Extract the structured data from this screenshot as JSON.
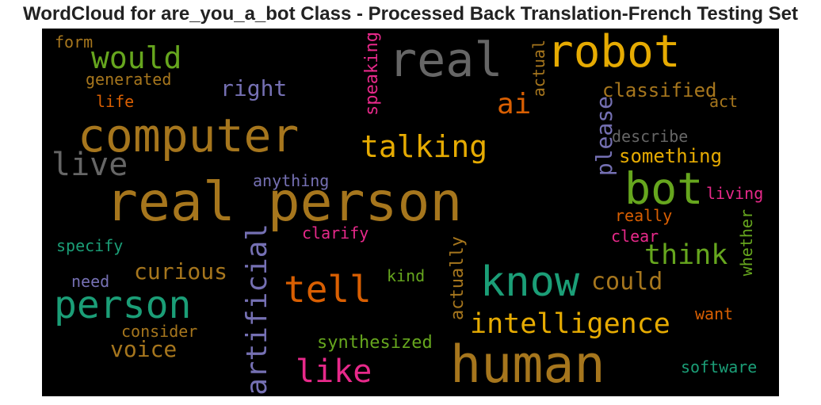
{
  "title": "WordCloud for are_you_a_bot Class - Processed Back Translation-French Testing Set",
  "palette": {
    "ochre": "#a6761d",
    "gold": "#e6ab02",
    "green": "#66a61e",
    "teal": "#1b9e77",
    "orange": "#d95f02",
    "purple": "#7570b3",
    "pink": "#e7298a",
    "gray": "#666666"
  },
  "words": [
    {
      "id": "real-person",
      "text": "real person",
      "color": "ochre"
    },
    {
      "id": "human",
      "text": "human",
      "color": "ochre"
    },
    {
      "id": "computer",
      "text": "computer",
      "color": "ochre"
    },
    {
      "id": "robot",
      "text": "robot",
      "color": "gold"
    },
    {
      "id": "real",
      "text": "real",
      "color": "gray"
    },
    {
      "id": "know",
      "text": "know",
      "color": "teal"
    },
    {
      "id": "person",
      "text": "person",
      "color": "teal"
    },
    {
      "id": "bot",
      "text": "bot",
      "color": "green"
    },
    {
      "id": "tell",
      "text": "tell",
      "color": "orange"
    },
    {
      "id": "artificial",
      "text": "artificial",
      "color": "purple"
    },
    {
      "id": "talking",
      "text": "talking",
      "color": "gold"
    },
    {
      "id": "intelligence",
      "text": "intelligence",
      "color": "gold"
    },
    {
      "id": "like",
      "text": "like",
      "color": "pink"
    },
    {
      "id": "would",
      "text": "would",
      "color": "green"
    },
    {
      "id": "think",
      "text": "think",
      "color": "green"
    },
    {
      "id": "live",
      "text": "live",
      "color": "gray"
    },
    {
      "id": "ai",
      "text": "ai",
      "color": "orange"
    },
    {
      "id": "please",
      "text": "please",
      "color": "purple"
    },
    {
      "id": "could",
      "text": "could",
      "color": "ochre"
    },
    {
      "id": "curious",
      "text": "curious",
      "color": "ochre"
    },
    {
      "id": "voice",
      "text": "voice",
      "color": "ochre"
    },
    {
      "id": "right",
      "text": "right",
      "color": "purple"
    },
    {
      "id": "speaking",
      "text": "speaking",
      "color": "pink"
    },
    {
      "id": "classified",
      "text": "classified",
      "color": "ochre"
    },
    {
      "id": "something",
      "text": "something",
      "color": "gold"
    },
    {
      "id": "synthesized",
      "text": "synthesized",
      "color": "green"
    },
    {
      "id": "actually",
      "text": "actually",
      "color": "ochre"
    },
    {
      "id": "actual",
      "text": "actual",
      "color": "ochre"
    },
    {
      "id": "generated",
      "text": "generated",
      "color": "ochre"
    },
    {
      "id": "describe",
      "text": "describe",
      "color": "gray"
    },
    {
      "id": "anything",
      "text": "anything",
      "color": "purple"
    },
    {
      "id": "clarify",
      "text": "clarify",
      "color": "pink"
    },
    {
      "id": "specify",
      "text": "specify",
      "color": "teal"
    },
    {
      "id": "consider",
      "text": "consider",
      "color": "ochre"
    },
    {
      "id": "software",
      "text": "software",
      "color": "teal"
    },
    {
      "id": "whether",
      "text": "whether",
      "color": "green"
    },
    {
      "id": "living",
      "text": "living",
      "color": "pink"
    },
    {
      "id": "really",
      "text": "really",
      "color": "orange"
    },
    {
      "id": "clear",
      "text": "clear",
      "color": "pink"
    },
    {
      "id": "want",
      "text": "want",
      "color": "orange"
    },
    {
      "id": "kind",
      "text": "kind",
      "color": "green"
    },
    {
      "id": "need",
      "text": "need",
      "color": "purple"
    },
    {
      "id": "form",
      "text": "form",
      "color": "ochre"
    },
    {
      "id": "life",
      "text": "life",
      "color": "orange"
    },
    {
      "id": "act",
      "text": "act",
      "color": "ochre"
    }
  ]
}
